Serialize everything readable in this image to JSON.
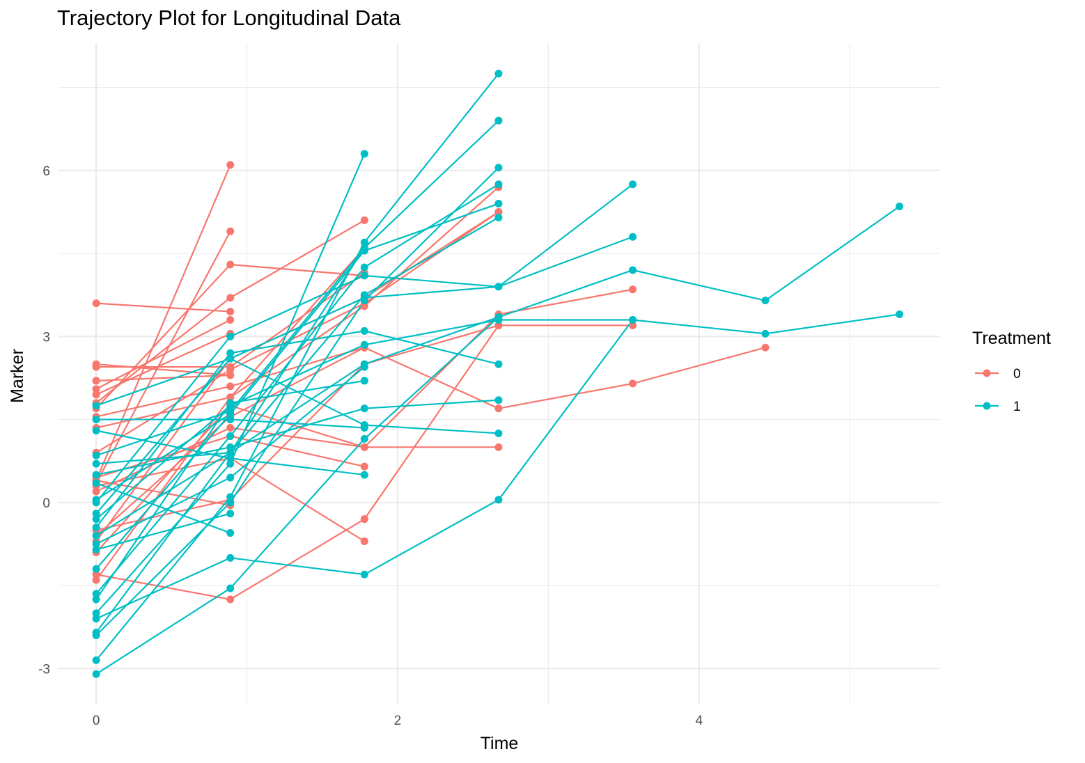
{
  "chart_data": {
    "type": "line",
    "title": "Trajectory Plot for Longitudinal Data",
    "xlabel": "Time",
    "ylabel": "Marker",
    "xlim": [
      -0.25,
      5.6
    ],
    "ylim": [
      -3.65,
      8.3
    ],
    "x_ticks": [
      0,
      2,
      4
    ],
    "y_ticks": [
      -3,
      0,
      3,
      6
    ],
    "grid": true,
    "legend": {
      "title": "Treatment",
      "placement": "right"
    },
    "colors": {
      "0": "#F8766D",
      "1": "#00BFC4"
    },
    "series": [
      {
        "name": "0",
        "trajectories": [
          [
            [
              0,
              0.4
            ],
            [
              0.89,
              6.1
            ]
          ],
          [
            [
              0,
              0.35
            ],
            [
              0.89,
              4.9
            ]
          ],
          [
            [
              0,
              1.7
            ],
            [
              0.89,
              4.3
            ],
            [
              1.78,
              4.1
            ]
          ],
          [
            [
              0,
              3.6
            ],
            [
              0.89,
              3.45
            ]
          ],
          [
            [
              0,
              1.8
            ],
            [
              0.89,
              3.7
            ],
            [
              1.78,
              5.1
            ]
          ],
          [
            [
              0,
              2.5
            ],
            [
              0.89,
              2.3
            ]
          ],
          [
            [
              0,
              2.2
            ],
            [
              0.89,
              2.3
            ]
          ],
          [
            [
              0,
              2.45
            ],
            [
              0.89,
              2.45
            ],
            [
              1.78,
              4.15
            ]
          ],
          [
            [
              0,
              2.05
            ],
            [
              0.89,
              3.3
            ]
          ],
          [
            [
              0,
              1.95
            ],
            [
              0.89,
              3.05
            ]
          ],
          [
            [
              0,
              1.55
            ],
            [
              0.89,
              2.1
            ],
            [
              1.78,
              2.8
            ]
          ],
          [
            [
              0,
              1.35
            ],
            [
              0.89,
              1.9
            ],
            [
              1.78,
              3.55
            ],
            [
              2.67,
              5.7
            ]
          ],
          [
            [
              0,
              0.9
            ],
            [
              0.89,
              2.4
            ],
            [
              1.78,
              3.6
            ],
            [
              2.67,
              5.25
            ]
          ],
          [
            [
              0,
              0.45
            ],
            [
              0.89,
              1.2
            ],
            [
              1.78,
              0.65
            ]
          ],
          [
            [
              0,
              0.3
            ],
            [
              0.89,
              0.8
            ],
            [
              1.78,
              -0.7
            ]
          ],
          [
            [
              0,
              0.2
            ],
            [
              0.89,
              1.35
            ],
            [
              1.78,
              1.0
            ],
            [
              2.67,
              3.4
            ],
            [
              3.56,
              3.85
            ]
          ],
          [
            [
              0,
              -0.5
            ],
            [
              0.89,
              0.05
            ],
            [
              1.78,
              2.5
            ],
            [
              2.67,
              3.2
            ],
            [
              3.56,
              3.2
            ]
          ],
          [
            [
              0,
              -0.6
            ],
            [
              0.89,
              1.55
            ],
            [
              1.78,
              2.8
            ],
            [
              2.67,
              1.7
            ],
            [
              3.56,
              2.15
            ],
            [
              4.44,
              2.8
            ]
          ],
          [
            [
              0,
              -0.9
            ],
            [
              0.89,
              1.75
            ],
            [
              1.78,
              1.0
            ],
            [
              2.67,
              1.0
            ]
          ],
          [
            [
              0,
              -1.3
            ],
            [
              0.89,
              -1.75
            ],
            [
              1.78,
              -0.3
            ],
            [
              2.67,
              3.2
            ]
          ],
          [
            [
              0,
              -1.4
            ],
            [
              0.89,
              1.9
            ],
            [
              1.78,
              4.6
            ]
          ],
          [
            [
              0,
              -0.7
            ],
            [
              0.89,
              2.6
            ],
            [
              1.78,
              3.7
            ],
            [
              2.67,
              5.25
            ]
          ],
          [
            [
              0,
              0.4
            ],
            [
              0.89,
              -0.05
            ]
          ]
        ]
      },
      {
        "name": "1",
        "trajectories": [
          [
            [
              0,
              -2.85
            ],
            [
              0.89,
              0.1
            ],
            [
              1.78,
              4.7
            ],
            [
              2.67,
              7.75
            ]
          ],
          [
            [
              0,
              -2.35
            ],
            [
              0.89,
              0.9
            ],
            [
              1.78,
              4.6
            ],
            [
              2.67,
              6.9
            ]
          ],
          [
            [
              0,
              -2.4
            ],
            [
              0.89,
              0.0
            ],
            [
              1.78,
              3.65
            ],
            [
              2.67,
              6.05
            ]
          ],
          [
            [
              0,
              -1.65
            ],
            [
              0.89,
              1.2
            ],
            [
              1.78,
              4.25
            ],
            [
              2.67,
              5.75
            ]
          ],
          [
            [
              0,
              -1.2
            ],
            [
              0.89,
              1.6
            ],
            [
              1.78,
              4.55
            ],
            [
              2.67,
              5.4
            ]
          ],
          [
            [
              0,
              -0.6
            ],
            [
              0.89,
              0.9
            ],
            [
              1.78,
              3.75
            ],
            [
              2.67,
              5.15
            ]
          ],
          [
            [
              0,
              -0.2
            ],
            [
              0.89,
              2.6
            ],
            [
              1.78,
              3.7
            ],
            [
              2.67,
              3.9
            ],
            [
              3.56,
              5.75
            ]
          ],
          [
            [
              0,
              -0.45
            ],
            [
              0.89,
              2.7
            ],
            [
              1.78,
              3.1
            ],
            [
              2.67,
              2.5
            ]
          ],
          [
            [
              0,
              0.0
            ],
            [
              0.89,
              3.0
            ],
            [
              1.78,
              4.1
            ],
            [
              2.67,
              3.9
            ],
            [
              3.56,
              4.8
            ]
          ],
          [
            [
              0,
              0.5
            ],
            [
              0.89,
              1.0
            ],
            [
              1.78,
              1.7
            ],
            [
              2.67,
              1.85
            ]
          ],
          [
            [
              0,
              1.75
            ],
            [
              0.89,
              2.6
            ],
            [
              1.78,
              1.4
            ],
            [
              2.67,
              1.25
            ]
          ],
          [
            [
              0,
              1.5
            ],
            [
              0.89,
              1.5
            ],
            [
              1.78,
              1.35
            ]
          ],
          [
            [
              0,
              0.7
            ],
            [
              0.89,
              0.9
            ],
            [
              1.78,
              2.5
            ],
            [
              2.67,
              3.35
            ],
            [
              3.56,
              4.2
            ],
            [
              4.44,
              3.65
            ],
            [
              5.33,
              5.35
            ]
          ],
          [
            [
              0,
              -0.3
            ],
            [
              0.89,
              1.75
            ],
            [
              1.78,
              2.85
            ],
            [
              2.67,
              3.3
            ],
            [
              3.56,
              3.3
            ],
            [
              4.44,
              3.05
            ],
            [
              5.33,
              3.4
            ]
          ],
          [
            [
              0,
              -3.1
            ],
            [
              0.89,
              -1.55
            ],
            [
              1.78,
              1.15
            ],
            [
              2.67,
              3.35
            ]
          ],
          [
            [
              0,
              -2.1
            ],
            [
              0.89,
              -1.0
            ],
            [
              1.78,
              -1.3
            ],
            [
              2.67,
              0.05
            ],
            [
              3.56,
              3.3
            ]
          ],
          [
            [
              0,
              -2.0
            ],
            [
              0.89,
              0.7
            ],
            [
              1.78,
              6.3
            ]
          ],
          [
            [
              0,
              1.3
            ],
            [
              0.89,
              0.8
            ],
            [
              1.78,
              0.5
            ]
          ],
          [
            [
              0,
              0.35
            ],
            [
              0.89,
              -0.55
            ]
          ],
          [
            [
              0,
              -0.85
            ],
            [
              0.89,
              -0.2
            ]
          ],
          [
            [
              0,
              -1.75
            ],
            [
              0.89,
              1.8
            ],
            [
              1.78,
              2.2
            ]
          ],
          [
            [
              0,
              0.85
            ],
            [
              0.89,
              1.65
            ],
            [
              1.78,
              4.6
            ]
          ],
          [
            [
              0,
              -0.75
            ],
            [
              0.89,
              0.45
            ],
            [
              1.78,
              2.45
            ]
          ],
          [
            [
              0,
              0.05
            ],
            [
              0.89,
              1.6
            ]
          ]
        ]
      }
    ]
  }
}
